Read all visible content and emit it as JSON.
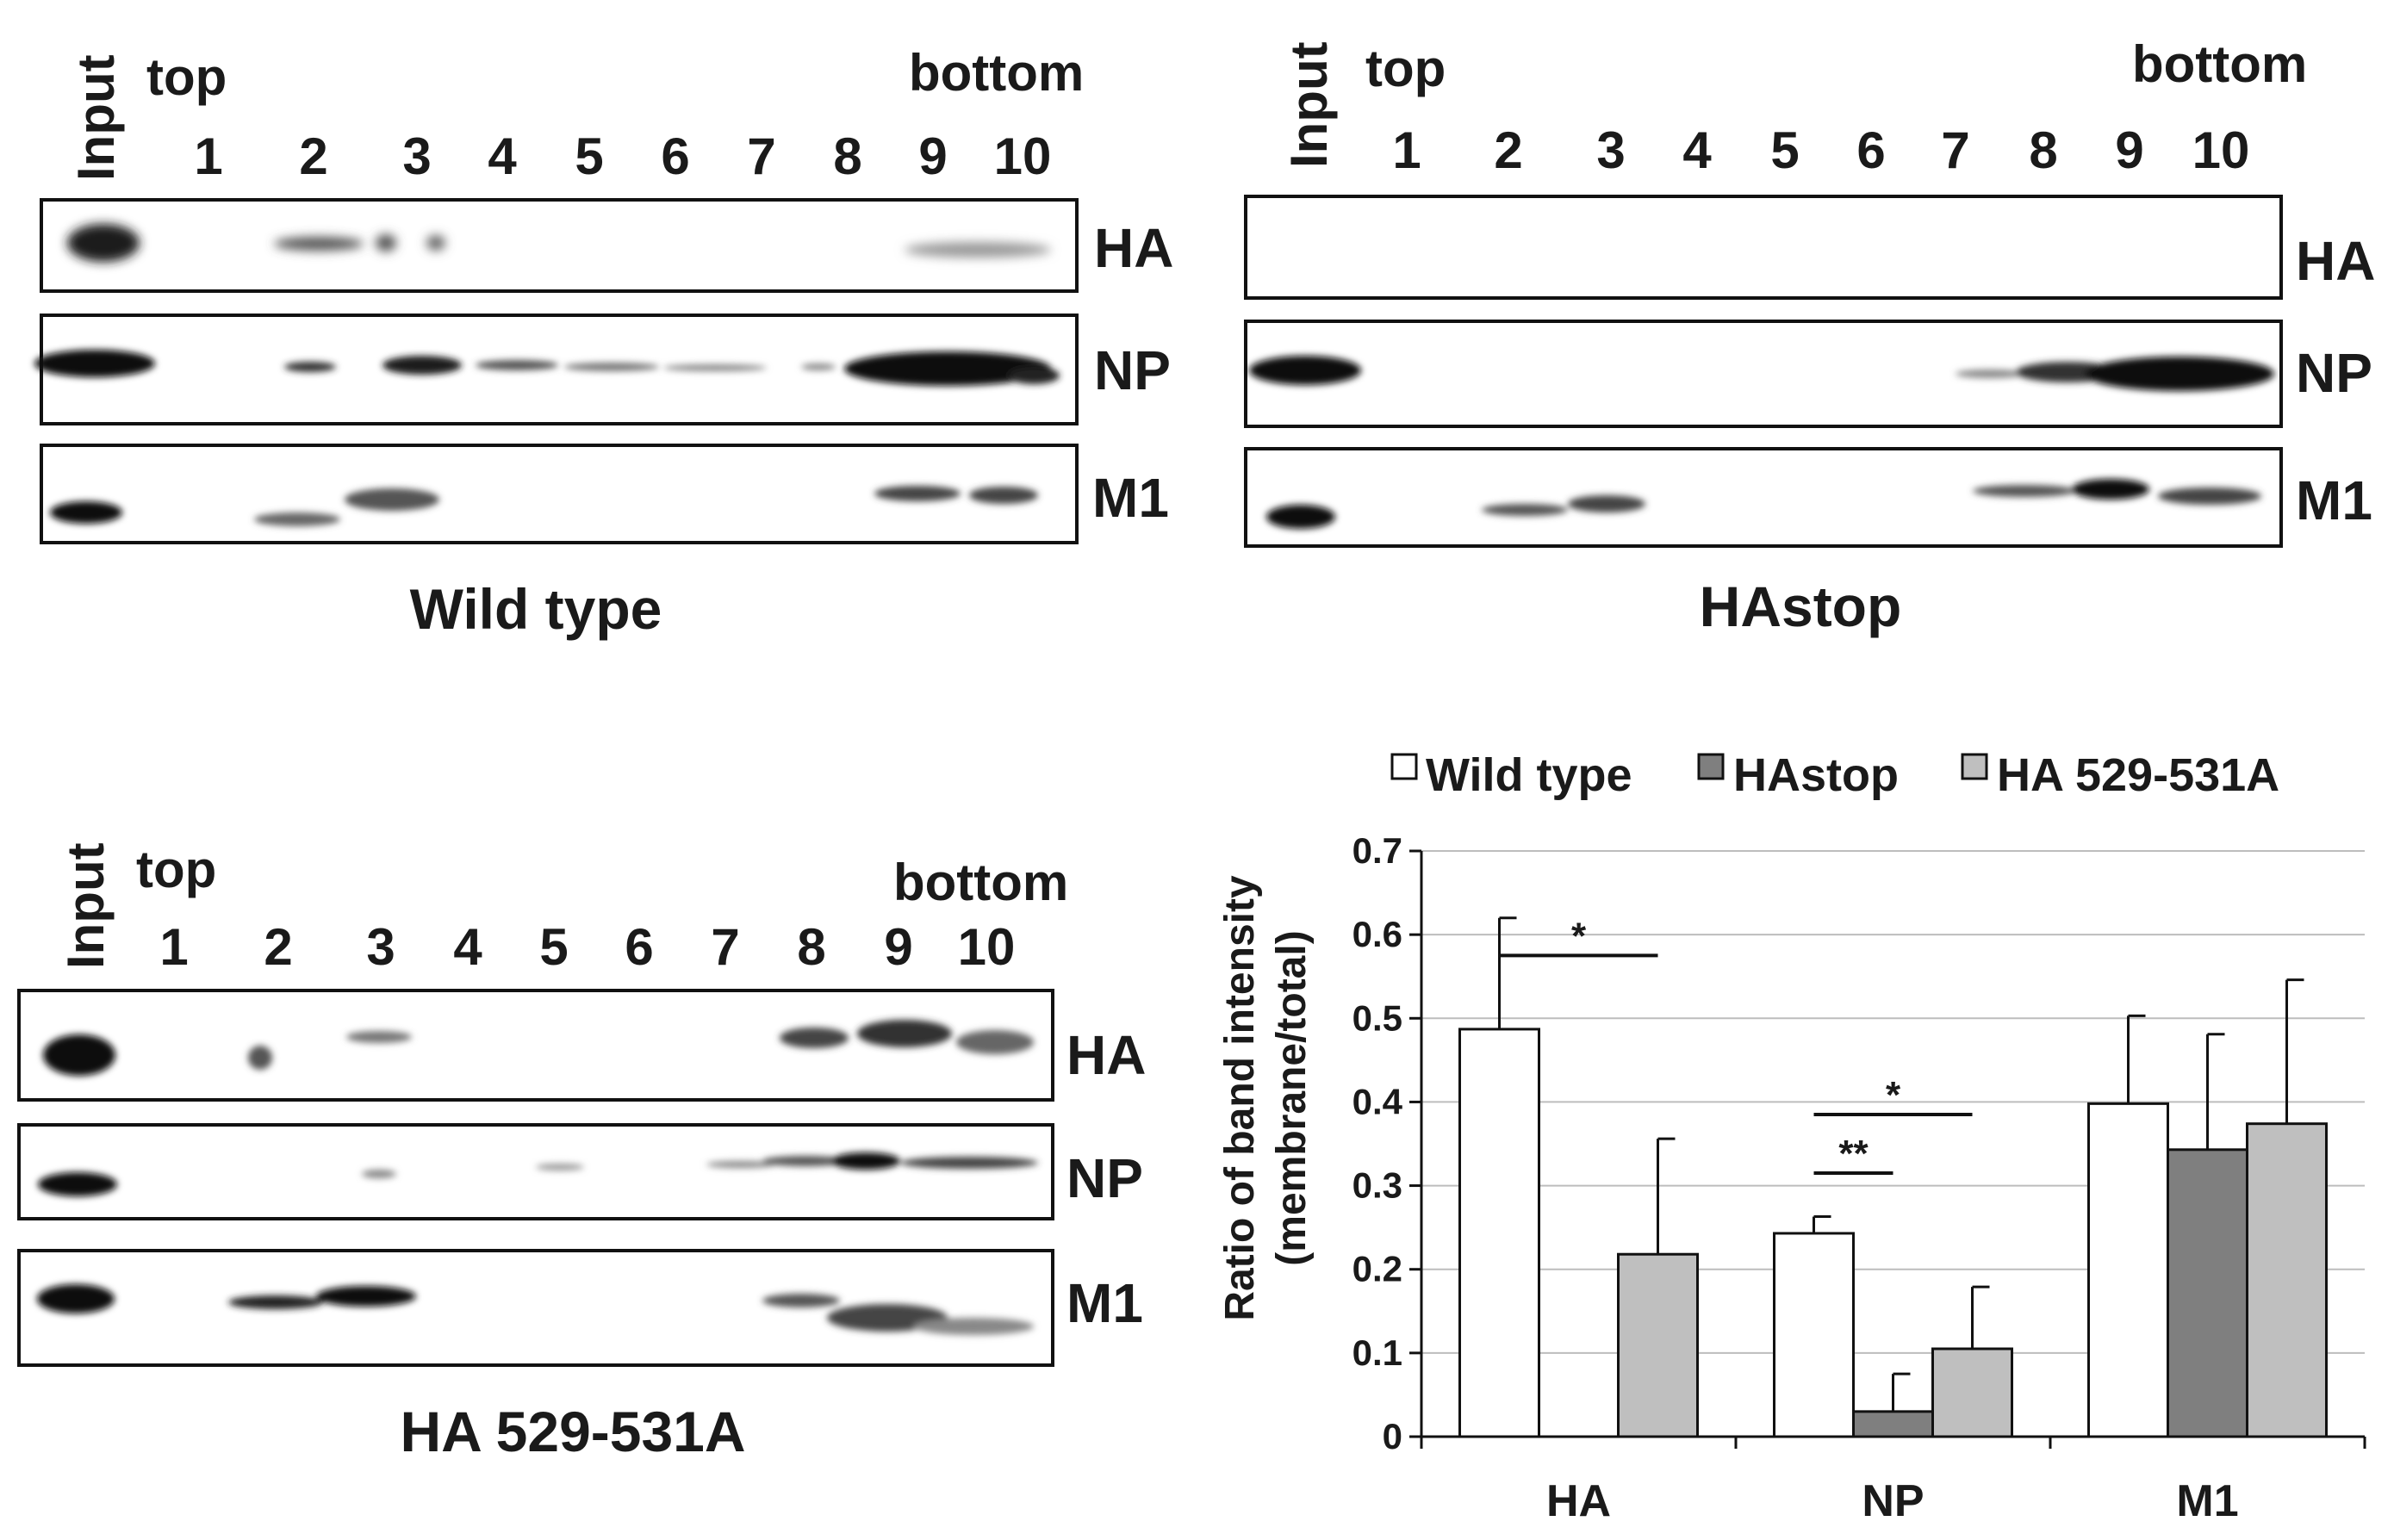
{
  "figure": {
    "panels": [
      {
        "id": "wild-type",
        "title": "Wild type",
        "input_label": "Input",
        "top_label": "top",
        "bottom_label": "bottom",
        "lanes": [
          "1",
          "2",
          "3",
          "4",
          "5",
          "6",
          "7",
          "8",
          "9",
          "10"
        ],
        "blots": [
          "HA",
          "NP",
          "M1"
        ]
      },
      {
        "id": "hastop",
        "title": "HAstop",
        "input_label": "Input",
        "top_label": "top",
        "bottom_label": "bottom",
        "lanes": [
          "1",
          "2",
          "3",
          "4",
          "5",
          "6",
          "7",
          "8",
          "9",
          "10"
        ],
        "blots": [
          "HA",
          "NP",
          "M1"
        ]
      },
      {
        "id": "ha-529-531a",
        "title": "HA 529-531A",
        "input_label": "Input",
        "top_label": "top",
        "bottom_label": "bottom",
        "lanes": [
          "1",
          "2",
          "3",
          "4",
          "5",
          "6",
          "7",
          "8",
          "9",
          "10"
        ],
        "blots": [
          "HA",
          "NP",
          "M1"
        ]
      }
    ]
  },
  "chart_data": {
    "type": "bar",
    "title": "",
    "ylabel_line1": "Ratio of band intensity",
    "ylabel_line2": "(membrane/total)",
    "xlabel": "",
    "categories": [
      "HA",
      "NP",
      "M1"
    ],
    "ylim": [
      0,
      0.7
    ],
    "yticks": [
      0,
      0.1,
      0.2,
      0.3,
      0.4,
      0.5,
      0.6,
      0.7
    ],
    "ytick_labels": [
      "0",
      "0.1",
      "0.2",
      "0.3",
      "0.4",
      "0.5",
      "0.6",
      "0.7"
    ],
    "grid": true,
    "legend_position": "top",
    "series": [
      {
        "name": "Wild type",
        "color": "#ffffff",
        "values": [
          0.487,
          0.243,
          0.398
        ],
        "errors": [
          0.133,
          0.02,
          0.105
        ]
      },
      {
        "name": "HAstop",
        "color": "#7f7f7f",
        "values": [
          0.0,
          0.03,
          0.343
        ],
        "errors": [
          0.0,
          0.045,
          0.138
        ]
      },
      {
        "name": "HA 529-531A",
        "color": "#bfbfbf",
        "values": [
          0.218,
          0.105,
          0.374
        ],
        "errors": [
          0.138,
          0.074,
          0.172
        ]
      }
    ],
    "annotations": [
      {
        "text": "*",
        "category": "HA",
        "from_series": "Wild type",
        "to_series": "HA 529-531A",
        "y": 0.575
      },
      {
        "text": "*",
        "category": "NP",
        "from_series": "Wild type",
        "to_series": "HA 529-531A",
        "y": 0.385
      },
      {
        "text": "**",
        "category": "NP",
        "from_series": "Wild type",
        "to_series": "HAstop",
        "y": 0.315
      }
    ]
  }
}
